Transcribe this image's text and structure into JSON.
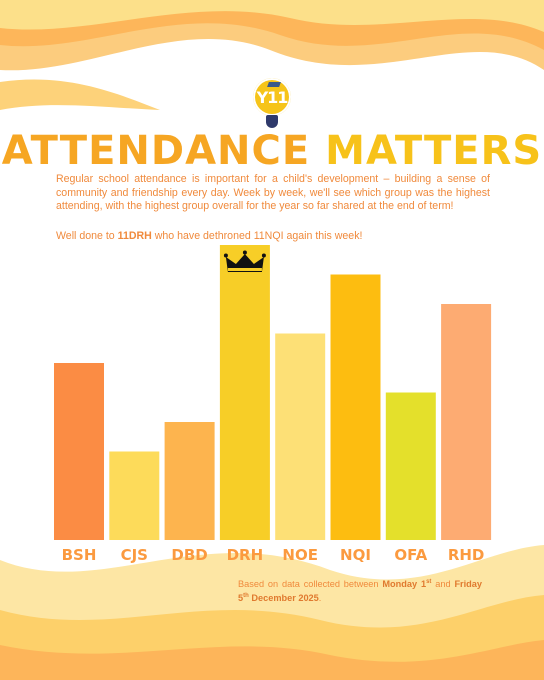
{
  "badge": {
    "text": "Y11"
  },
  "header": {
    "title_word1": "ATTENDANCE",
    "title_word2": "MATTERS",
    "intro": "Regular school attendance is important for a child's development – building a sense of community and friendship every day. Week by week, we'll see which group was the highest attending, with the highest group overall for the year so far shared at the end of term!",
    "note_prefix": "Well done to ",
    "note_group": "11DRH",
    "note_suffix": " who have dethroned 11NQI again this week!"
  },
  "chart_data": {
    "type": "bar",
    "categories": [
      "BSH",
      "CJS",
      "DBD",
      "DRH",
      "NOE",
      "NQI",
      "OFA",
      "RHD"
    ],
    "values": [
      60,
      30,
      40,
      100,
      70,
      90,
      50,
      80
    ],
    "bar_colors": [
      "#fb8c44",
      "#fddb5a",
      "#fdb44e",
      "#f7ce27",
      "#fde076",
      "#fdbd10",
      "#e4e02b",
      "#fdab72"
    ],
    "winner": "DRH",
    "title": "",
    "xlabel": "",
    "ylabel": "",
    "ylim": [
      0,
      100
    ],
    "axes_visible": false,
    "grid": false
  },
  "colors": {
    "accent_orange": "#f6a623",
    "accent_yellow": "#f7c21a",
    "text_orange": "#f08a3c"
  },
  "footnote": {
    "prefix": "Based on data collected between ",
    "date1_day": "Monday 1",
    "date1_sup": "st",
    "middle": " and ",
    "date2_day": "Friday 5",
    "date2_sup": "th",
    "date2_rest": " December 2025",
    "end": "."
  }
}
